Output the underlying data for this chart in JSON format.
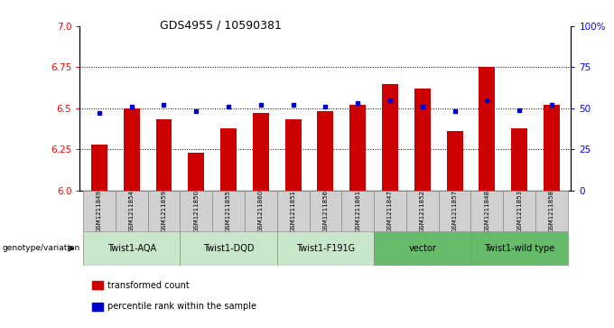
{
  "title": "GDS4955 / 10590381",
  "samples": [
    "GSM1211849",
    "GSM1211854",
    "GSM1211859",
    "GSM1211850",
    "GSM1211855",
    "GSM1211860",
    "GSM1211851",
    "GSM1211856",
    "GSM1211861",
    "GSM1211847",
    "GSM1211852",
    "GSM1211857",
    "GSM1211848",
    "GSM1211853",
    "GSM1211858"
  ],
  "transformed_counts": [
    6.28,
    6.5,
    6.43,
    6.23,
    6.38,
    6.47,
    6.43,
    6.48,
    6.52,
    6.65,
    6.62,
    6.36,
    6.75,
    6.38,
    6.52
  ],
  "percentile_ranks": [
    47,
    51,
    52,
    48,
    51,
    52,
    52,
    51,
    53,
    55,
    51,
    48,
    55,
    49,
    52
  ],
  "groups": [
    {
      "name": "Twist1-AQA",
      "indices": [
        0,
        1,
        2
      ],
      "color": "#c8e6c9"
    },
    {
      "name": "Twist1-DQD",
      "indices": [
        3,
        4,
        5
      ],
      "color": "#c8e6c9"
    },
    {
      "name": "Twist1-F191G",
      "indices": [
        6,
        7,
        8
      ],
      "color": "#c8e6c9"
    },
    {
      "name": "vector",
      "indices": [
        9,
        10,
        11
      ],
      "color": "#66bb6a"
    },
    {
      "name": "Twist1-wild type",
      "indices": [
        12,
        13,
        14
      ],
      "color": "#66bb6a"
    }
  ],
  "ylim_left": [
    6.0,
    7.0
  ],
  "ylim_right": [
    0,
    100
  ],
  "yticks_left": [
    6.0,
    6.25,
    6.5,
    6.75,
    7.0
  ],
  "yticks_right": [
    0,
    25,
    50,
    75,
    100
  ],
  "bar_color": "#cc0000",
  "dot_color": "#0000cc",
  "bar_bottom": 6.0,
  "grid_lines": [
    6.25,
    6.5,
    6.75
  ],
  "legend_items": [
    {
      "label": "transformed count",
      "color": "#cc0000"
    },
    {
      "label": "percentile rank within the sample",
      "color": "#0000cc"
    }
  ],
  "genotype_label": "genotype/variation"
}
